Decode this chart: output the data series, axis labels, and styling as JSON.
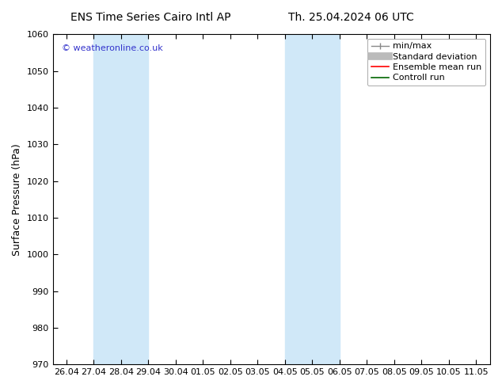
{
  "title_left": "ENS Time Series Cairo Intl AP",
  "title_right": "Th. 25.04.2024 06 UTC",
  "ylabel": "Surface Pressure (hPa)",
  "ylim": [
    970,
    1060
  ],
  "yticks": [
    970,
    980,
    990,
    1000,
    1010,
    1020,
    1030,
    1040,
    1050,
    1060
  ],
  "xtick_labels": [
    "26.04",
    "27.04",
    "28.04",
    "29.04",
    "30.04",
    "01.05",
    "02.05",
    "03.05",
    "04.05",
    "05.05",
    "06.05",
    "07.05",
    "08.05",
    "09.05",
    "10.05",
    "11.05"
  ],
  "xlim_left": -0.5,
  "xlim_right": 15.5,
  "shaded_bands": [
    {
      "x_start": 1,
      "x_end": 3
    },
    {
      "x_start": 8,
      "x_end": 10
    }
  ],
  "watermark": "© weatheronline.co.uk",
  "watermark_color": "#3333cc",
  "bg_color": "#ffffff",
  "plot_bg_color": "#ffffff",
  "spine_color": "#000000",
  "band_color": "#d0e8f8",
  "title_fontsize": 10,
  "axis_label_fontsize": 9,
  "tick_fontsize": 8,
  "legend_fontsize": 8
}
